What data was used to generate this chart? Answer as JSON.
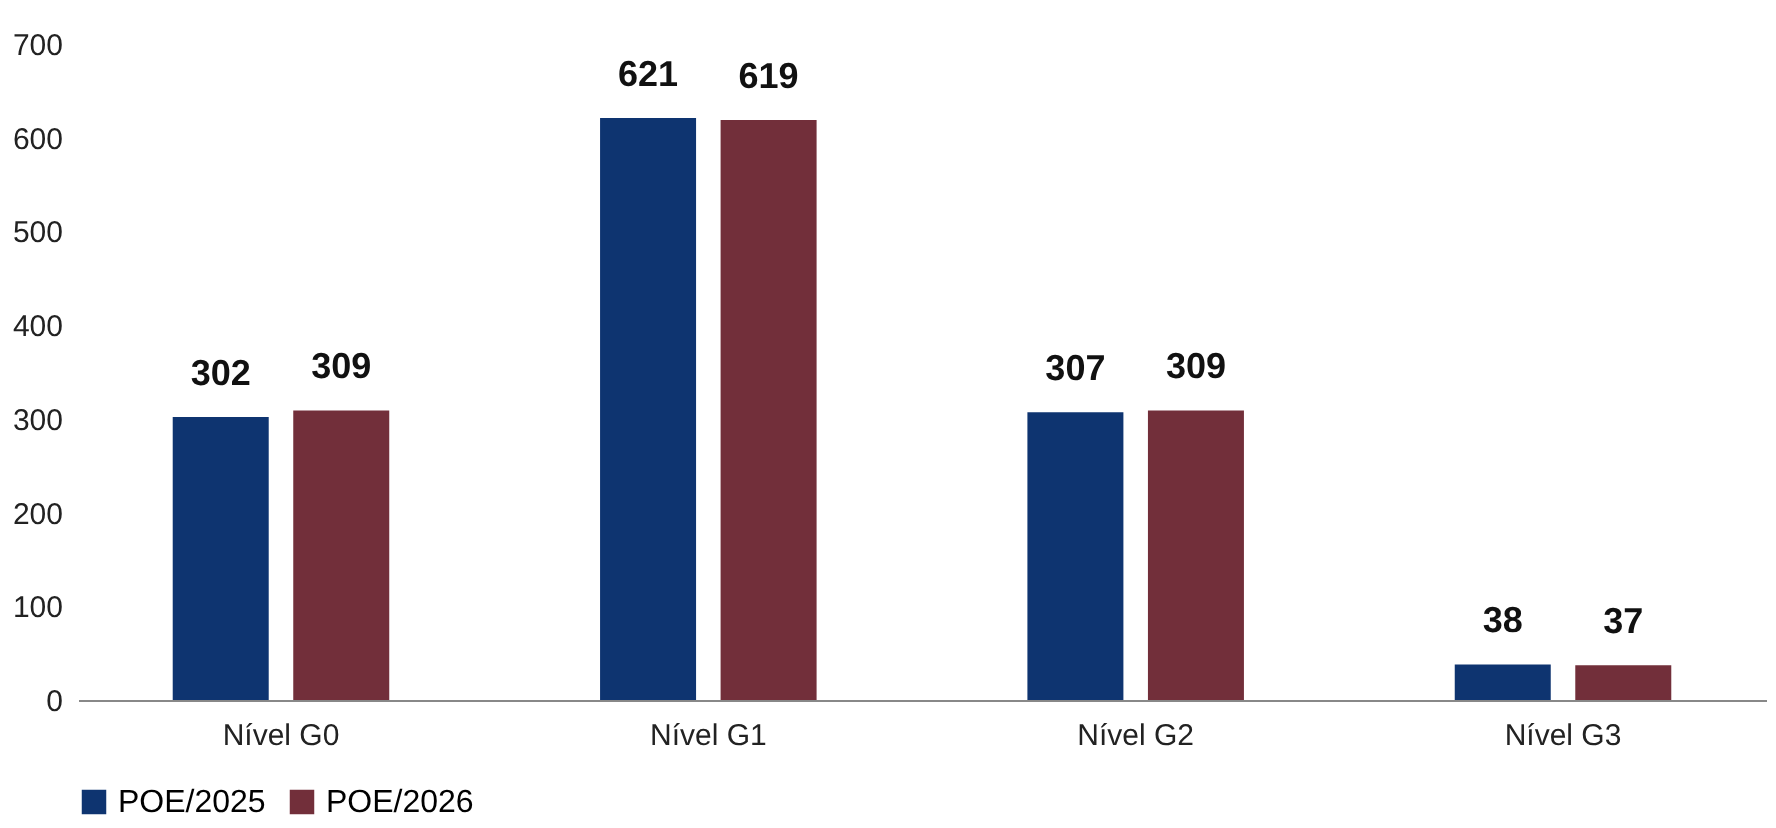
{
  "chart_data": {
    "type": "bar",
    "categories": [
      "Nível G0",
      "Nível G1",
      "Nível G2",
      "Nível G3"
    ],
    "series": [
      {
        "name": "POE/2025",
        "color": "#0e3470",
        "values": [
          302,
          621,
          307,
          38
        ]
      },
      {
        "name": "POE/2026",
        "color": "#722f3a",
        "values": [
          309,
          619,
          309,
          37
        ]
      }
    ],
    "ylim": [
      0,
      700
    ],
    "yticks": [
      0,
      100,
      200,
      300,
      400,
      500,
      600,
      700
    ],
    "grid": false,
    "legend": "bottom",
    "data_labels": true
  }
}
